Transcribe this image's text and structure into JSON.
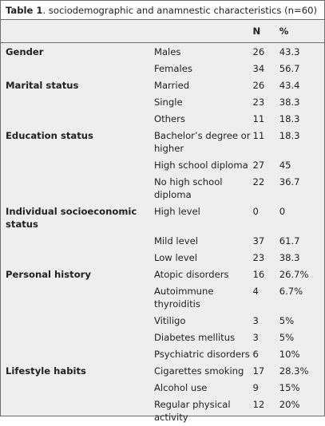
{
  "caption": {
    "label": "Table 1",
    "text": ". sociodemographic and anamnestic characteristics (n=60)"
  },
  "columns": [
    "",
    "",
    "N",
    "%"
  ],
  "rows": [
    {
      "category": "Gender",
      "item": "Males",
      "n": "26",
      "pct": "43.3"
    },
    {
      "category": "",
      "item": "Females",
      "n": "34",
      "pct": "56.7"
    },
    {
      "category": "Marital status",
      "item": "Married",
      "n": "26",
      "pct": "43.4"
    },
    {
      "category": "",
      "item": "Single",
      "n": "23",
      "pct": "38.3"
    },
    {
      "category": "",
      "item": "Others",
      "n": "11",
      "pct": "18.3"
    },
    {
      "category": "Education status",
      "item": "Bachelor’s degree or higher",
      "n": "11",
      "pct": "18.3"
    },
    {
      "category": "",
      "item": "High school diploma",
      "n": "27",
      "pct": "45"
    },
    {
      "category": "",
      "item": "No high school diploma",
      "n": "22",
      "pct": "36.7"
    },
    {
      "category": "Individual socioeconomic status",
      "item": "High level",
      "n": "0",
      "pct": "0"
    },
    {
      "category": "",
      "item": "Mild level",
      "n": "37",
      "pct": "61.7"
    },
    {
      "category": "",
      "item": "Low level",
      "n": "23",
      "pct": "38.3"
    },
    {
      "category": "Personal history",
      "item": "Atopic disorders",
      "n": "16",
      "pct": "26.7%"
    },
    {
      "category": "",
      "item": "Autoimmune thyroiditis",
      "n": "4",
      "pct": "6.7%"
    },
    {
      "category": "",
      "item": "Vitiligo",
      "n": "3",
      "pct": "5%"
    },
    {
      "category": "",
      "item": "Diabetes mellitus",
      "n": "3",
      "pct": "5%"
    },
    {
      "category": "",
      "item": "Psychiatric disorders",
      "n": "6",
      "pct": "10%"
    },
    {
      "category": "Lifestyle habits",
      "item": "Cigarettes smoking",
      "n": "17",
      "pct": "28.3%"
    },
    {
      "category": "",
      "item": "Alcohol use",
      "n": "9",
      "pct": "15%"
    },
    {
      "category": "",
      "item": "Regular physical activity",
      "n": "12",
      "pct": "20%"
    }
  ]
}
